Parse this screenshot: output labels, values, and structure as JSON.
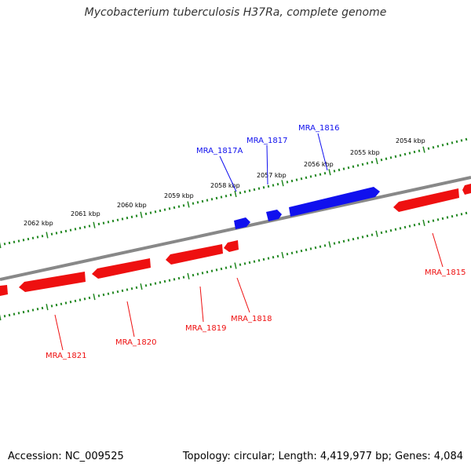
{
  "title": "Mycobacterium tuberculosis H37Ra, complete genome",
  "footer": {
    "accession": "Accession: NC_009525",
    "info": "Topology: circular; Length: 4,419,977 bp; Genes: 4,084"
  },
  "colors": {
    "forward_strand": "#1010ee",
    "reverse_strand": "#ee1010",
    "backbone": "#888888",
    "tick": "#228822"
  },
  "axis": {
    "unit": "kbp",
    "outer_labels": [
      "2062 kbp",
      "2061 kbp",
      "2060 kbp",
      "2059 kbp",
      "2058 kbp",
      "2057 kbp",
      "2056 kbp",
      "2055 kbp",
      "2054 kbp"
    ]
  },
  "genes": {
    "forward": [
      "MRA_1817A",
      "MRA_1817",
      "MRA_1816"
    ],
    "reverse": [
      "MRA_1821",
      "MRA_1820",
      "MRA_1819",
      "MRA_1818",
      "MRA_1815"
    ]
  }
}
